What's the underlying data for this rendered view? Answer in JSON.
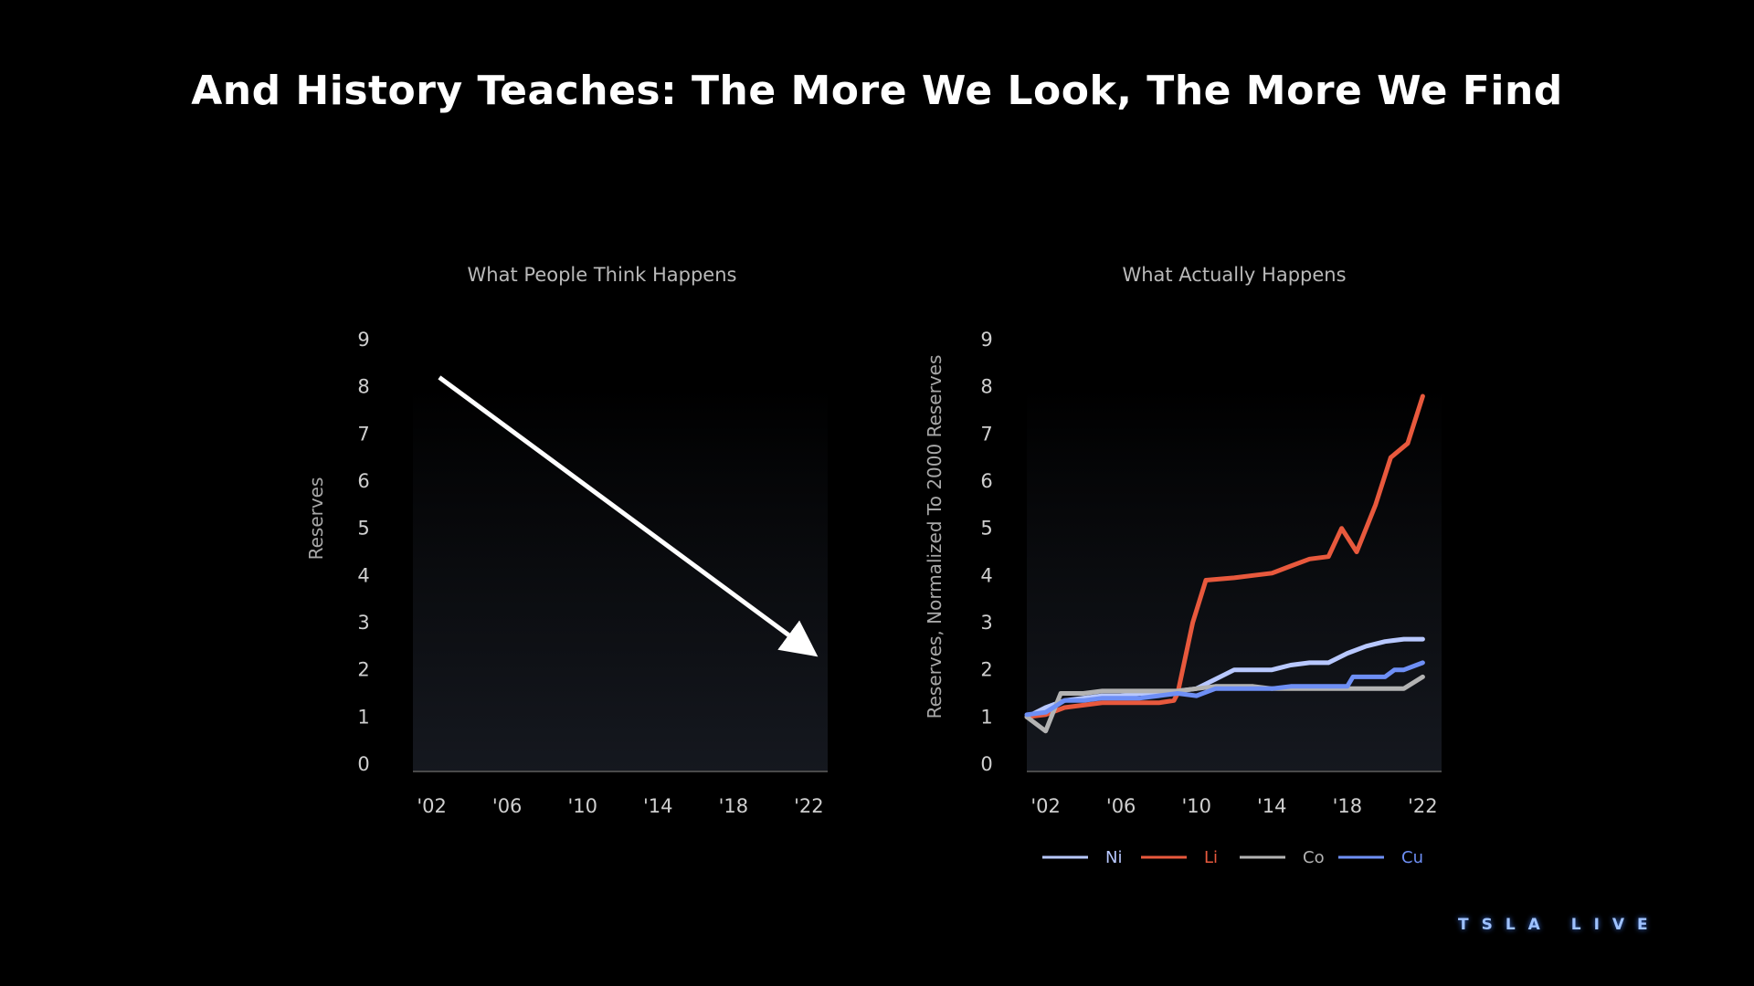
{
  "page": {
    "title": "And History Teaches: The More We Look, The More We Find"
  },
  "brand": "TSLA LIVE",
  "chart_data": [
    {
      "type": "line",
      "title": "What People Think Happens",
      "xlabel": "",
      "ylabel": "Reserves",
      "x_tick_labels": [
        "'02",
        "'06",
        "'10",
        "'14",
        "'18",
        "'22"
      ],
      "x_ticks": [
        2002,
        2006,
        2010,
        2014,
        2018,
        2022
      ],
      "y_ticks": [
        0,
        1,
        2,
        3,
        4,
        5,
        6,
        7,
        8,
        9
      ],
      "xlim": [
        2001,
        2023
      ],
      "ylim": [
        0,
        9
      ],
      "grid": false,
      "annotations": [
        {
          "type": "arrow",
          "from": {
            "x": 2002.4,
            "y": 8.2
          },
          "to": {
            "x": 2021.9,
            "y": 2.45
          },
          "color": "#ffffff"
        }
      ]
    },
    {
      "type": "line",
      "title": "What Actually Happens",
      "xlabel": "",
      "ylabel": "Reserves, Normalized To 2000 Reserves",
      "x_tick_labels": [
        "'02",
        "'06",
        "'10",
        "'14",
        "'18",
        "'22"
      ],
      "x_ticks": [
        2002,
        2006,
        2010,
        2014,
        2018,
        2022
      ],
      "y_ticks": [
        0,
        1,
        2,
        3,
        4,
        5,
        6,
        7,
        8,
        9
      ],
      "xlim": [
        2001,
        2023
      ],
      "ylim": [
        0,
        9
      ],
      "grid": false,
      "legend_position": "bottom",
      "series": [
        {
          "name": "Ni",
          "color": "#b8c8ff",
          "x": [
            2001,
            2002,
            2003,
            2004,
            2005,
            2006,
            2007,
            2008,
            2009,
            2010,
            2011,
            2012,
            2013,
            2014,
            2015,
            2016,
            2017,
            2018,
            2019,
            2020,
            2021,
            2022
          ],
          "y": [
            1.0,
            1.2,
            1.35,
            1.4,
            1.45,
            1.45,
            1.5,
            1.5,
            1.55,
            1.6,
            1.8,
            2.0,
            2.0,
            2.0,
            2.1,
            2.15,
            2.15,
            2.35,
            2.5,
            2.6,
            2.65,
            2.65
          ]
        },
        {
          "name": "Li",
          "color": "#e8593d",
          "x": [
            2001,
            2002,
            2003,
            2004,
            2005,
            2006,
            2007,
            2008,
            2008.8,
            2009,
            2009.8,
            2010.5,
            2012,
            2013,
            2014,
            2015,
            2016,
            2017,
            2017.7,
            2018.5,
            2019.5,
            2020.3,
            2021.2,
            2022
          ],
          "y": [
            1.0,
            1.05,
            1.2,
            1.25,
            1.3,
            1.3,
            1.3,
            1.3,
            1.35,
            1.5,
            3.0,
            3.9,
            3.95,
            4.0,
            4.05,
            4.2,
            4.35,
            4.4,
            5.0,
            4.5,
            5.5,
            6.5,
            6.8,
            7.8
          ]
        },
        {
          "name": "Co",
          "color": "#b3b3b3",
          "x": [
            2001,
            2002,
            2002.8,
            2004,
            2005,
            2006,
            2007,
            2008,
            2009,
            2010,
            2011,
            2012,
            2013,
            2014,
            2015,
            2016,
            2017,
            2018,
            2019,
            2020,
            2021,
            2022
          ],
          "y": [
            1.0,
            0.7,
            1.5,
            1.5,
            1.55,
            1.55,
            1.55,
            1.55,
            1.55,
            1.6,
            1.65,
            1.65,
            1.65,
            1.6,
            1.6,
            1.6,
            1.6,
            1.6,
            1.6,
            1.6,
            1.6,
            1.85
          ]
        },
        {
          "name": "Cu",
          "color": "#6e8ff5",
          "x": [
            2001,
            2002,
            2003,
            2004,
            2005,
            2006,
            2007,
            2008,
            2009,
            2010,
            2011,
            2012,
            2013,
            2014,
            2015,
            2016,
            2017,
            2018,
            2018.3,
            2019,
            2020,
            2020.5,
            2021,
            2022
          ],
          "y": [
            1.05,
            1.1,
            1.35,
            1.35,
            1.4,
            1.4,
            1.4,
            1.45,
            1.5,
            1.45,
            1.6,
            1.6,
            1.6,
            1.6,
            1.65,
            1.65,
            1.65,
            1.65,
            1.85,
            1.85,
            1.85,
            2.0,
            2.0,
            2.15
          ]
        }
      ]
    }
  ]
}
